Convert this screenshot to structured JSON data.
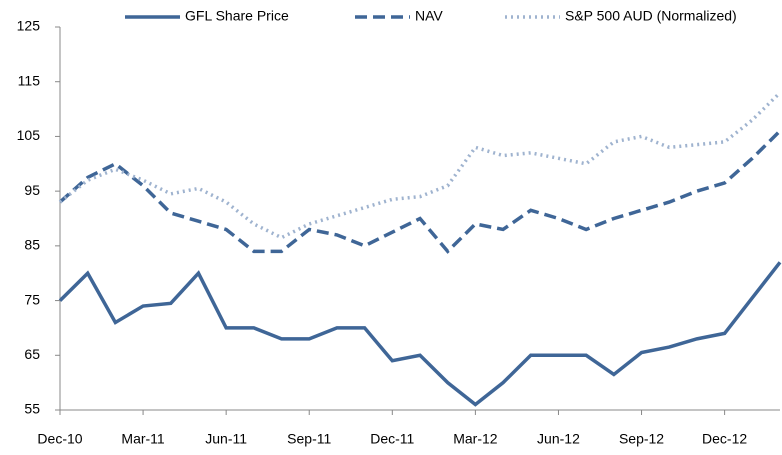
{
  "chart_data": {
    "type": "line",
    "categories": [
      "Dec-10",
      null,
      null,
      "Mar-11",
      null,
      null,
      "Jun-11",
      null,
      null,
      "Sep-11",
      null,
      null,
      "Dec-11",
      null,
      null,
      "Mar-12",
      null,
      null,
      "Jun-12",
      null,
      null,
      "Sep-12",
      null,
      null,
      "Dec-12",
      null,
      null
    ],
    "series": [
      {
        "name": "GFL Share Price",
        "color": "#3f6697",
        "dash": "solid",
        "values": [
          75,
          80,
          71,
          74,
          74.5,
          80,
          70,
          70,
          68,
          68,
          70,
          70,
          64,
          65,
          60,
          56,
          60,
          65,
          65,
          65,
          61.5,
          65.5,
          66.5,
          68,
          69,
          75.5,
          82
        ]
      },
      {
        "name": "NAV",
        "color": "#3f6697",
        "dash": "dashed",
        "values": [
          93,
          97.5,
          100,
          96,
          91,
          89.5,
          88,
          84,
          84,
          88,
          87,
          85,
          87.5,
          90,
          84,
          89,
          88,
          91.5,
          90,
          88,
          90,
          91.5,
          93,
          95,
          96.5,
          101,
          106
        ]
      },
      {
        "name": "S&P 500 AUD (Normalized)",
        "color": "#9fb3cf",
        "dash": "dotted",
        "values": [
          93,
          97,
          99,
          97,
          94.5,
          95.5,
          93,
          89,
          86.5,
          89,
          90.5,
          92,
          93.5,
          94,
          96,
          103,
          101.5,
          102,
          101,
          100,
          104,
          105,
          103,
          103.5,
          104,
          108,
          113
        ]
      }
    ],
    "ylim": [
      55,
      125
    ],
    "yticks": [
      55,
      65,
      75,
      85,
      95,
      105,
      115,
      125
    ],
    "legend": "top"
  }
}
